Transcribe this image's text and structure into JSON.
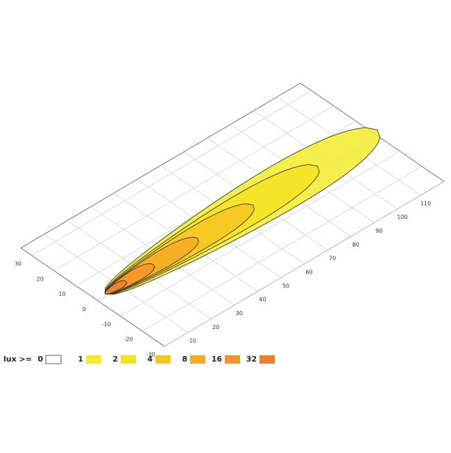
{
  "chart_data": {
    "type": "contour",
    "legend_title": "lux >=",
    "levels": [
      0,
      1,
      2,
      4,
      8,
      16,
      32
    ],
    "colors": [
      "#ffffff",
      "#f3ec2c",
      "#f4e320",
      "#f7c423",
      "#f7ab24",
      "#f4932a",
      "#ef7d2c"
    ],
    "xlim": [
      0,
      120
    ],
    "ylim": [
      -30,
      35
    ],
    "xticks": [
      10,
      20,
      30,
      40,
      50,
      60,
      70,
      80,
      90,
      100,
      110
    ],
    "yticks": [
      -30,
      -20,
      -10,
      0,
      10,
      20,
      30
    ],
    "grid": true
  }
}
